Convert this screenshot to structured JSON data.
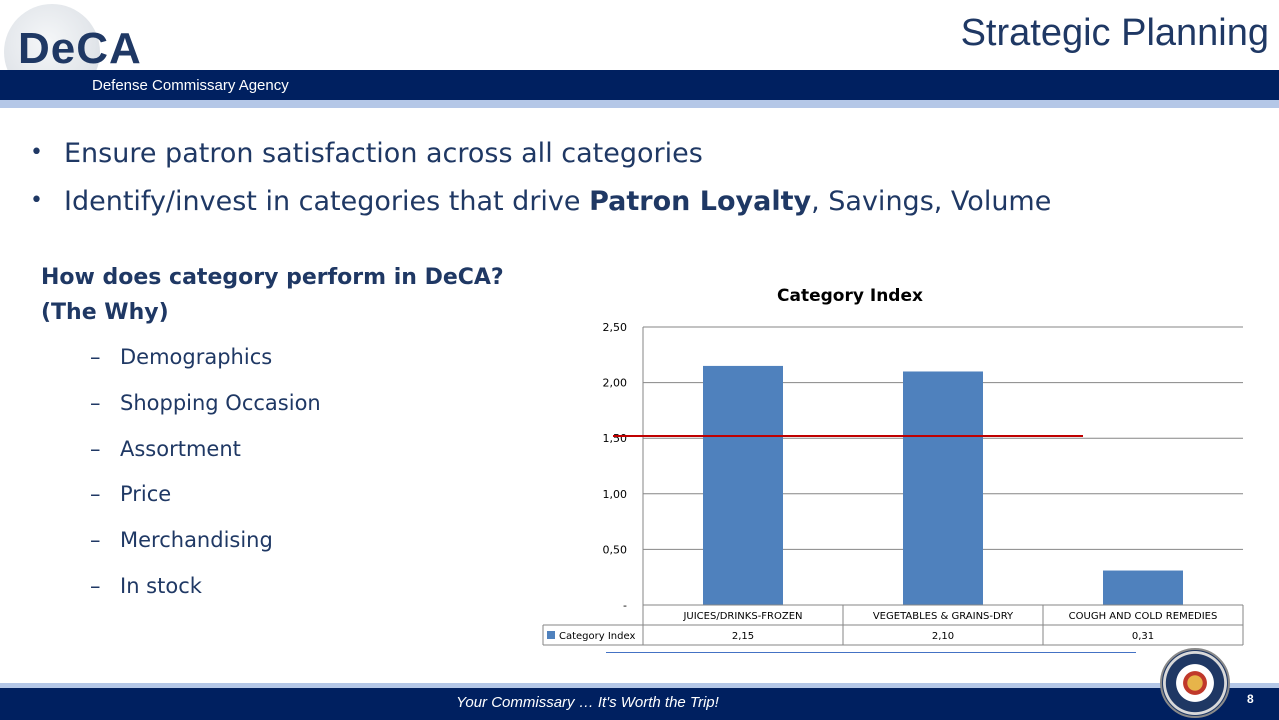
{
  "header": {
    "logo": "DeCA",
    "agency": "Defense Commissary Agency",
    "title": "Strategic Planning"
  },
  "bullets": [
    {
      "pre": "Ensure patron satisfaction across all categories",
      "bold": "",
      "post": ""
    },
    {
      "pre": "Identify/invest in categories that drive ",
      "bold": "Patron Loyalty",
      "post": ", Savings, Volume"
    }
  ],
  "question": {
    "line1": "How does category perform in DeCA?",
    "line2": "(The Why)"
  },
  "subitems": [
    "Demographics",
    "Shopping Occasion",
    "Assortment",
    "Price",
    "Merchandising",
    "In stock"
  ],
  "chart_data": {
    "type": "bar",
    "title": "Category Index",
    "categories": [
      "JUICES/DRINKS-FROZEN",
      "VEGETABLES & GRAINS-DRY",
      "COUGH AND COLD REMEDIES"
    ],
    "series": [
      {
        "name": "Category Index",
        "values": [
          2.15,
          2.1,
          0.31
        ],
        "labels": [
          "2,15",
          "2,10",
          "0,31"
        ],
        "color": "#4f81bd"
      }
    ],
    "yticks": [
      "-",
      "0,50",
      "1,00",
      "1,50",
      "2,00",
      "2,50"
    ],
    "ylim": [
      0,
      2.5
    ],
    "reference_line": {
      "value": 1.52,
      "color": "#c00000"
    },
    "grid": true,
    "data_table": true
  },
  "footer": {
    "tagline": "Your Commissary … It's Worth the Trip!",
    "page": "8"
  }
}
